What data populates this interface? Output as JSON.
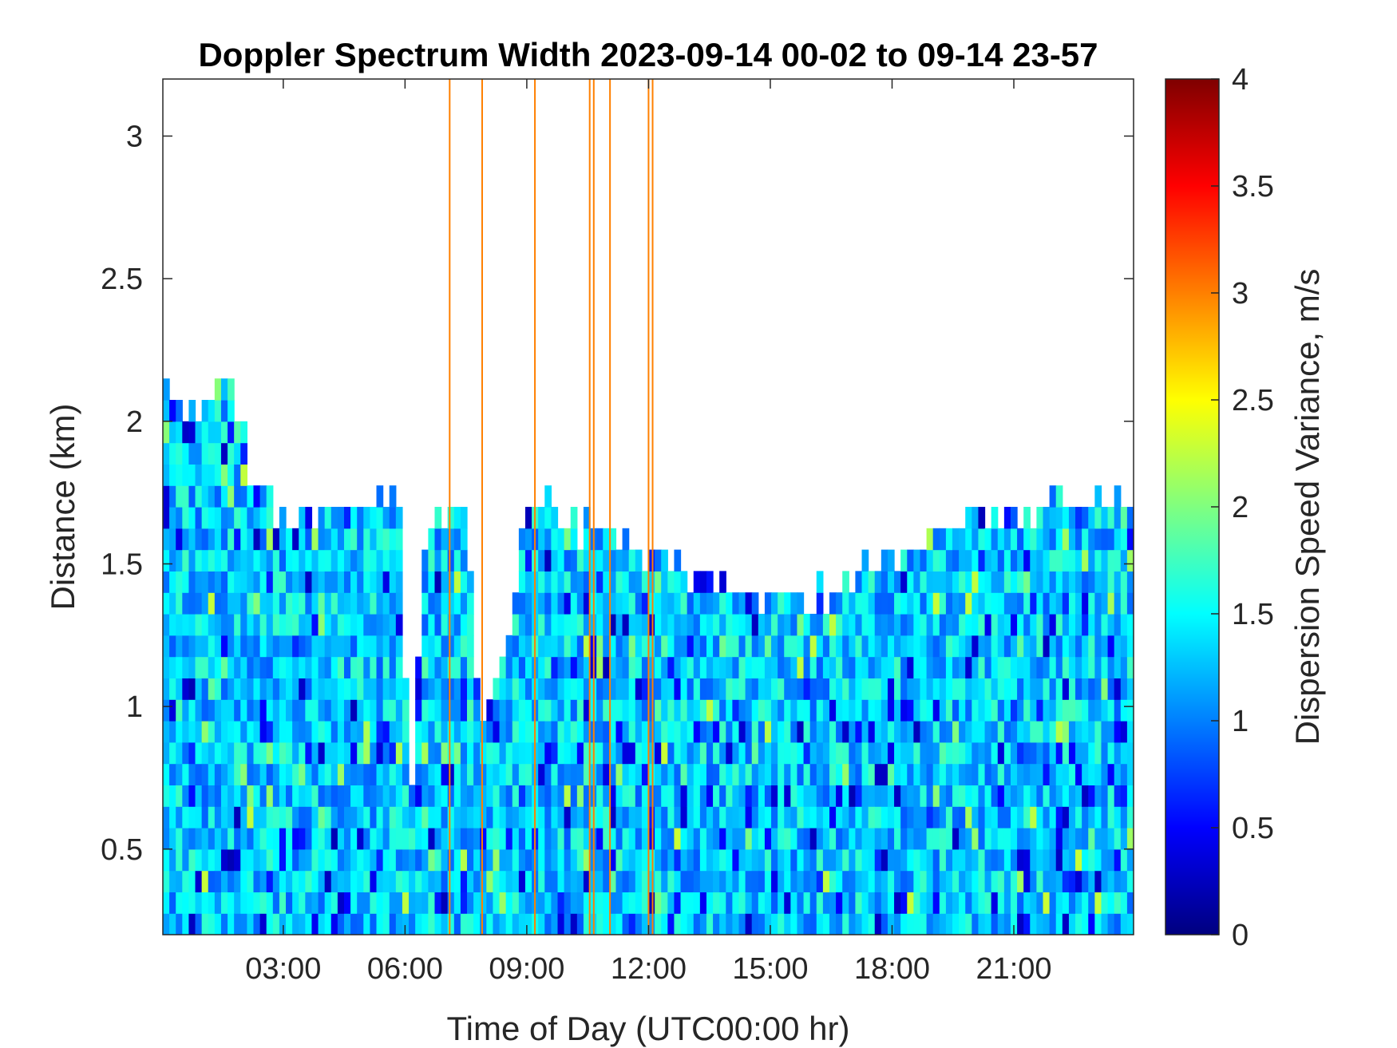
{
  "chart_data": {
    "type": "heatmap",
    "title": "Doppler Spectrum Width 2023-09-14 00-02 to 09-14 23-57",
    "xlabel": "Time of Day (UTC00:00 hr)",
    "ylabel": "Distance (km)",
    "x_unit": "hours",
    "xlim": [
      0.033,
      23.95
    ],
    "ylim": [
      0.2,
      3.2
    ],
    "x_ticks": [
      3,
      6,
      9,
      12,
      15,
      18,
      21
    ],
    "x_tick_labels": [
      "03:00",
      "06:00",
      "09:00",
      "12:00",
      "15:00",
      "18:00",
      "21:00"
    ],
    "y_ticks": [
      0.5,
      1,
      1.5,
      2,
      2.5,
      3
    ],
    "y_tick_labels": [
      "0.5",
      "1",
      "1.5",
      "2",
      "2.5",
      "3"
    ],
    "colorbar": {
      "label": "Dispersion Speed Variance, m/s",
      "colormap": "jet",
      "clim": [
        0,
        4
      ],
      "ticks": [
        0,
        0.5,
        1,
        1.5,
        2,
        2.5,
        3,
        3.5,
        4
      ],
      "tick_labels": [
        "0",
        "0.5",
        "1",
        "1.5",
        "2",
        "2.5",
        "3",
        "3.5",
        "4"
      ]
    },
    "grid": false,
    "layer_top_km": {
      "time_hr": [
        0.0,
        0.5,
        1.0,
        1.5,
        2.0,
        2.3,
        2.6,
        3.0,
        4.0,
        5.0,
        5.9,
        6.1,
        6.5,
        7.0,
        7.5,
        7.8,
        8.0,
        8.3,
        8.6,
        9.0,
        9.5,
        10.0,
        11.0,
        12.0,
        13.0,
        14.0,
        15.0,
        16.0,
        17.0,
        18.0,
        19.0,
        20.0,
        21.0,
        22.0,
        23.0,
        23.95
      ],
      "top": [
        2.15,
        2.1,
        2.05,
        2.2,
        2.0,
        1.75,
        1.7,
        1.65,
        1.65,
        1.7,
        1.75,
        0.6,
        1.6,
        1.7,
        1.65,
        1.1,
        0.95,
        1.1,
        1.3,
        1.75,
        1.7,
        1.65,
        1.6,
        1.55,
        1.45,
        1.4,
        1.35,
        1.4,
        1.45,
        1.55,
        1.6,
        1.7,
        1.65,
        1.7,
        1.75,
        1.7
      ]
    },
    "typical_value_m_s": 1.3,
    "value_range_in_layer_m_s": [
      0.2,
      2.3
    ],
    "high_value_columns_time_hr": [
      7.1,
      7.9,
      9.2,
      10.55,
      10.65,
      11.05,
      12.0,
      12.1
    ],
    "high_value_columns_value_m_s": 3.0
  }
}
